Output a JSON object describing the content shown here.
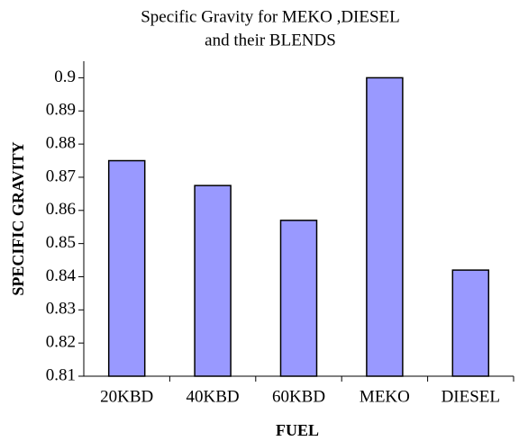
{
  "chart_data": {
    "type": "bar",
    "title_lines": [
      "Specific Gravity for MEKO ,DIESEL",
      "and their BLENDS"
    ],
    "x_label": "FUEL",
    "y_label": "SPECIFIC GRAVITY",
    "categories": [
      "20KBD",
      "40KBD",
      "60KBD",
      "MEKO",
      "DIESEL"
    ],
    "values": [
      0.875,
      0.8675,
      0.857,
      0.9,
      0.842
    ],
    "color": "#9999ff",
    "ylim": [
      0.81,
      0.905
    ],
    "yticks": [
      0.81,
      0.82,
      0.83,
      0.84,
      0.85,
      0.86,
      0.87,
      0.88,
      0.89,
      0.9
    ],
    "grid": false
  }
}
